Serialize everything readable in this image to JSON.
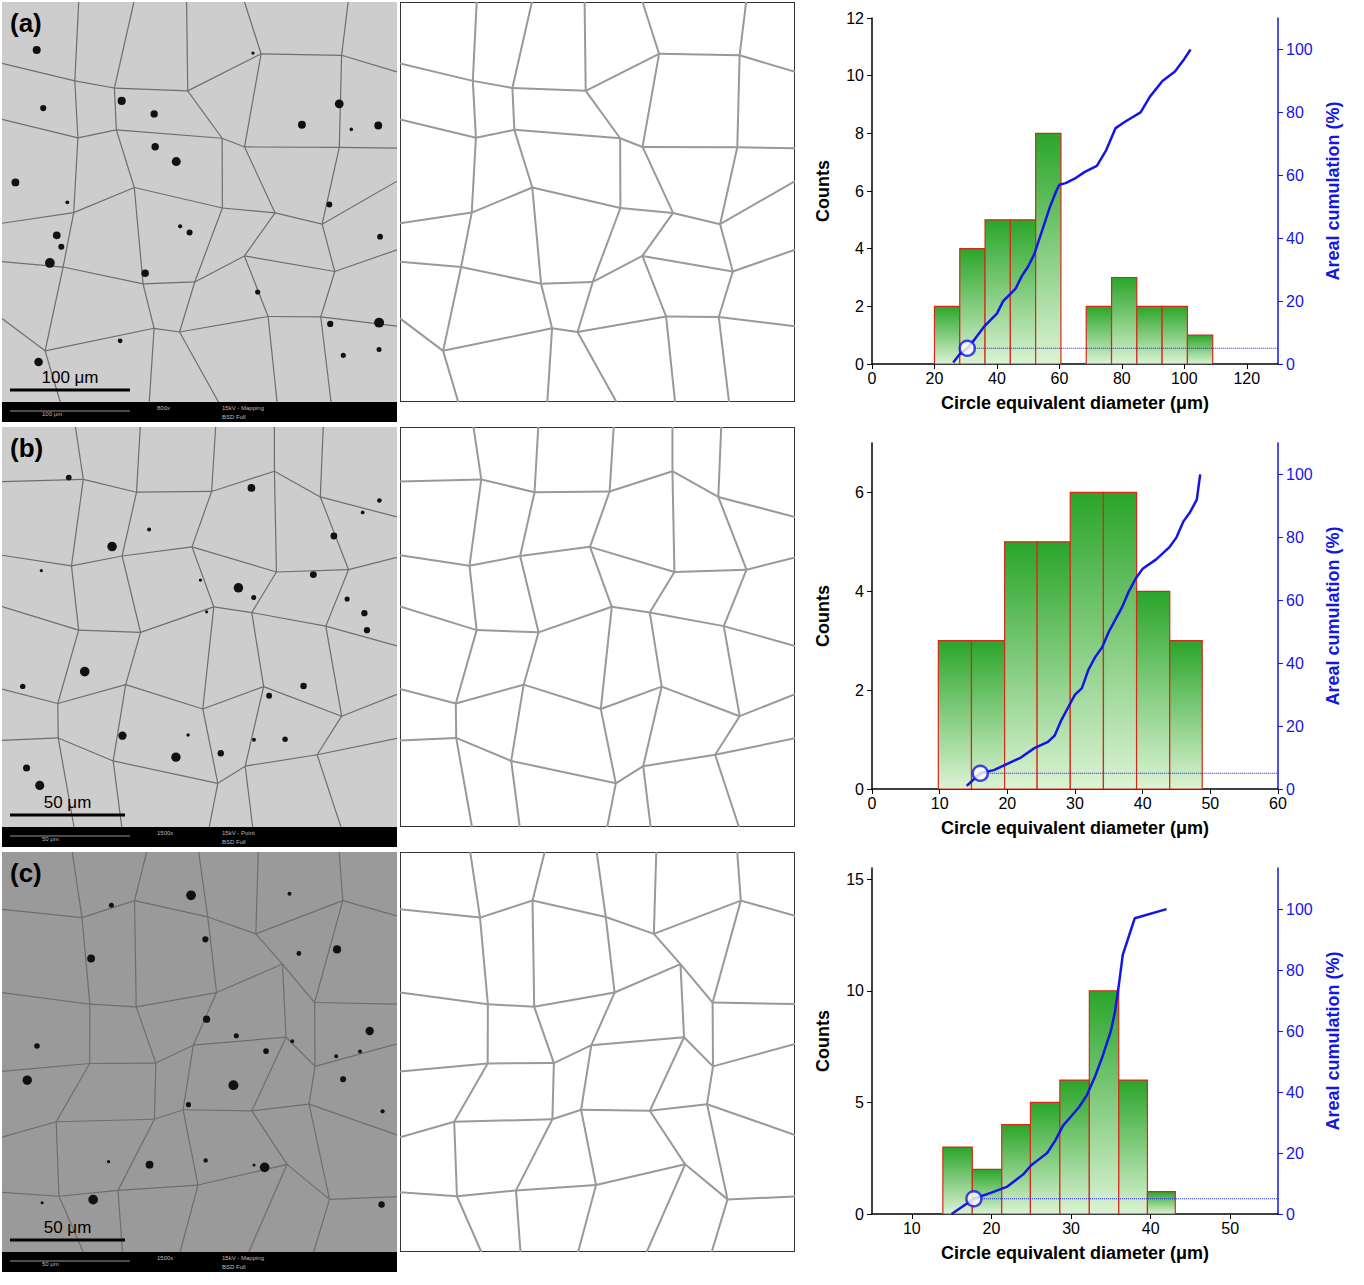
{
  "panels": [
    {
      "label": "(a)",
      "scale_bar": "100 μm",
      "footer": [
        "100 μm",
        "800x",
        "15kV - Mapping",
        "BSD Full"
      ]
    },
    {
      "label": "(b)",
      "scale_bar": "50 μm",
      "footer": [
        "50 μm",
        "1500x",
        "15kV - Point",
        "BSD Full"
      ]
    },
    {
      "label": "(c)",
      "scale_bar": "50 μm",
      "footer": [
        "50 μm",
        "1500x",
        "15kV - Mapping",
        "BSD Full"
      ]
    }
  ],
  "chart_data": [
    {
      "type": "histogram",
      "xlabel": "Circle equivalent diameter (μm)",
      "ylabel": "Counts",
      "y2label": "Areal cumulation (%)",
      "bins": [
        20,
        28.1,
        36.2,
        44.3,
        52.4,
        60.5,
        68.6,
        76.7,
        84.8,
        92.9,
        101,
        109.1
      ],
      "counts": [
        2,
        4,
        5,
        5,
        8,
        0,
        2,
        3,
        2,
        2,
        1
      ],
      "color": "#2aa52a",
      "xlim": [
        0,
        130
      ],
      "xticks": [
        0,
        20,
        40,
        60,
        80,
        100,
        120
      ],
      "ylim": [
        0,
        12
      ],
      "yticks": [
        0,
        2,
        4,
        6,
        8,
        10,
        12
      ],
      "y2lim": [
        0,
        110
      ],
      "y2ticks": [
        0,
        20,
        40,
        60,
        80,
        100
      ],
      "grid": false,
      "cumulative": {
        "axis": "y2",
        "color": "#1515e6",
        "x": [
          26,
          28,
          30.5,
          33,
          36,
          38,
          40,
          42,
          44,
          46,
          48,
          50,
          52,
          53,
          55,
          57,
          59,
          60,
          62,
          65,
          68,
          72,
          75,
          78,
          81,
          86,
          89,
          93,
          97,
          100,
          102
        ],
        "values": [
          0.5,
          3,
          5,
          8,
          12,
          14,
          16,
          20,
          22,
          24,
          28,
          31,
          35,
          38,
          44,
          50,
          55,
          57,
          57.5,
          59,
          61,
          63,
          68,
          75,
          77,
          80,
          85,
          90,
          93,
          97,
          100
        ]
      },
      "marker_point": {
        "x": 30.5,
        "y": 5
      }
    },
    {
      "type": "histogram",
      "xlabel": "Circle equivalent diameter (μm)",
      "ylabel": "Counts",
      "y2label": "Areal cumulation (%)",
      "bins": [
        9.8,
        14.7,
        19.6,
        24.4,
        29.3,
        34.2,
        39.1,
        44,
        48.8
      ],
      "counts": [
        3,
        3,
        5,
        5,
        6,
        6,
        4,
        3
      ],
      "color": "#2aa52a",
      "xlim": [
        0,
        60
      ],
      "xticks": [
        0,
        10,
        20,
        30,
        40,
        50,
        60
      ],
      "ylim": [
        0,
        7
      ],
      "yticks": [
        0,
        2,
        4,
        6
      ],
      "y2lim": [
        0,
        110
      ],
      "y2ticks": [
        0,
        20,
        40,
        60,
        80,
        100
      ],
      "grid": false,
      "cumulative": {
        "axis": "y2",
        "color": "#1515e6",
        "x": [
          14,
          16,
          18,
          20,
          22,
          24,
          26,
          27,
          28,
          29,
          30,
          31,
          32,
          33,
          34,
          35,
          36,
          37,
          38,
          39,
          40,
          42,
          44,
          45,
          46,
          47,
          48,
          48.5
        ],
        "values": [
          1,
          5,
          6,
          8,
          10,
          13,
          15,
          17,
          22,
          26,
          30,
          32,
          38,
          42,
          45,
          50,
          54,
          58,
          63,
          67,
          70,
          73,
          77,
          80,
          85,
          88,
          92,
          100
        ]
      },
      "marker_point": {
        "x": 16,
        "y": 5
      }
    },
    {
      "type": "histogram",
      "xlabel": "Circle equivalent diameter (μm)",
      "ylabel": "Counts",
      "y2label": "Areal cumulation (%)",
      "bins": [
        13.9,
        17.6,
        21.3,
        24.9,
        28.6,
        32.3,
        36,
        39.6,
        43.1
      ],
      "counts": [
        3,
        2,
        4,
        5,
        6,
        10,
        6,
        1
      ],
      "color": "#2aa52a",
      "xlim": [
        5,
        56
      ],
      "xticks": [
        10,
        20,
        30,
        40,
        50
      ],
      "ylim": [
        0,
        15.5
      ],
      "yticks": [
        0,
        5,
        10,
        15
      ],
      "y2lim": [
        0,
        113.5
      ],
      "y2ticks": [
        0,
        20,
        40,
        60,
        80,
        100
      ],
      "grid": false,
      "cumulative": {
        "axis": "y2",
        "color": "#1515e6",
        "x": [
          15,
          17.8,
          20,
          22,
          24,
          25,
          26,
          27,
          28,
          29,
          30,
          31,
          32,
          33,
          34,
          35,
          35.5,
          36,
          36.5,
          37.5,
          38,
          42
        ],
        "values": [
          0,
          5,
          7,
          9,
          13,
          16,
          18,
          20,
          24,
          29,
          32,
          35,
          39,
          45,
          52,
          60,
          66,
          75,
          85,
          93,
          97,
          100
        ]
      },
      "marker_point": {
        "x": 17.8,
        "y": 5
      }
    }
  ]
}
